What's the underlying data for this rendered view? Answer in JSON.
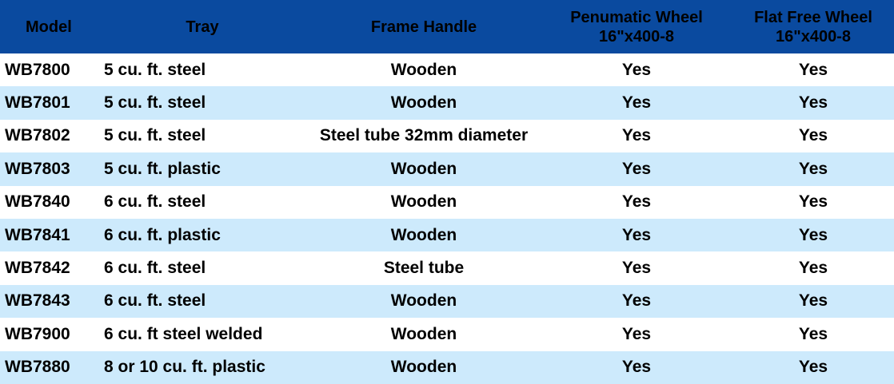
{
  "colors": {
    "header_bg": "#0a4a9f",
    "row_alt_bg": "#cdeafc",
    "row_bg": "#ffffff"
  },
  "headers": {
    "model": "Model",
    "tray": "Tray",
    "frame_handle": "Frame Handle",
    "pneumatic_line1": "Penumatic Wheel",
    "pneumatic_line2": "16\"x400-8",
    "flatfree_line1": "Flat Free Wheel",
    "flatfree_line2": "16\"x400-8"
  },
  "rows": [
    {
      "model": "WB7800",
      "tray": "5 cu. ft. steel",
      "handle": "Wooden",
      "pneumatic": "Yes",
      "flatfree": "Yes"
    },
    {
      "model": "WB7801",
      "tray": "5 cu. ft. steel",
      "handle": "Wooden",
      "pneumatic": "Yes",
      "flatfree": "Yes"
    },
    {
      "model": "WB7802",
      "tray": "5 cu. ft. steel",
      "handle": "Steel tube 32mm diameter",
      "pneumatic": "Yes",
      "flatfree": "Yes"
    },
    {
      "model": "WB7803",
      "tray": "5 cu. ft. plastic",
      "handle": "Wooden",
      "pneumatic": "Yes",
      "flatfree": "Yes"
    },
    {
      "model": "WB7840",
      "tray": "6 cu. ft. steel",
      "handle": "Wooden",
      "pneumatic": "Yes",
      "flatfree": "Yes"
    },
    {
      "model": "WB7841",
      "tray": "6 cu. ft. plastic",
      "handle": "Wooden",
      "pneumatic": "Yes",
      "flatfree": "Yes"
    },
    {
      "model": "WB7842",
      "tray": "6 cu. ft. steel",
      "handle": "Steel tube",
      "pneumatic": "Yes",
      "flatfree": "Yes"
    },
    {
      "model": "WB7843",
      "tray": "6 cu. ft. steel",
      "handle": "Wooden",
      "pneumatic": "Yes",
      "flatfree": "Yes"
    },
    {
      "model": "WB7900",
      "tray": "6 cu. ft steel welded",
      "handle": "Wooden",
      "pneumatic": "Yes",
      "flatfree": "Yes"
    },
    {
      "model": "WB7880",
      "tray": "8 or 10 cu. ft. plastic",
      "handle": "Wooden",
      "pneumatic": "Yes",
      "flatfree": "Yes"
    }
  ]
}
